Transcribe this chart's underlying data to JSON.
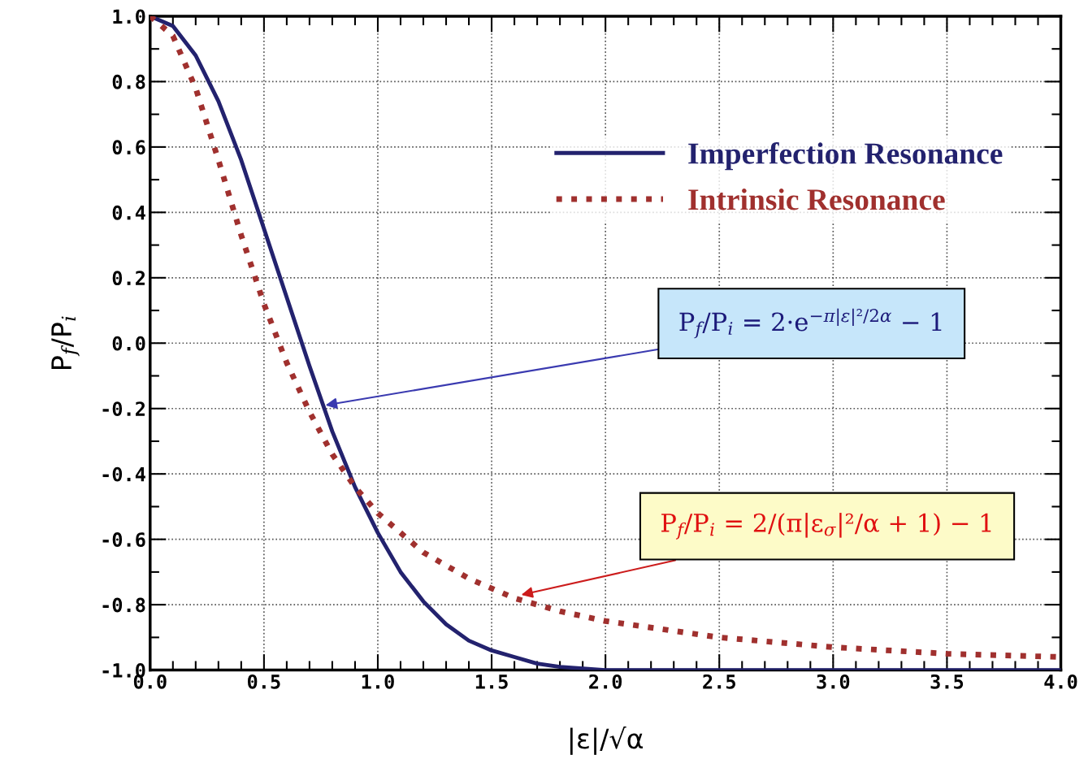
{
  "chart_data": {
    "type": "line",
    "xlabel": "|ε|/√α",
    "ylabel": "P$_{f}$/P$_{i}$",
    "x": [
      0,
      0.1,
      0.2,
      0.3,
      0.4,
      0.5,
      0.6,
      0.7,
      0.8,
      0.9,
      1.0,
      1.1,
      1.2,
      1.3,
      1.4,
      1.5,
      1.6,
      1.7,
      1.8,
      2.0,
      2.5,
      3.0,
      3.5,
      4.0
    ],
    "series": [
      {
        "name": "Imperfection Resonance",
        "color": "#23226e",
        "line_style": "solid",
        "values": [
          1.0,
          0.97,
          0.88,
          0.74,
          0.56,
          0.35,
          0.14,
          -0.07,
          -0.27,
          -0.44,
          -0.58,
          -0.7,
          -0.79,
          -0.86,
          -0.91,
          -0.94,
          -0.96,
          -0.98,
          -0.99,
          -1.0,
          -1.0,
          -1.0,
          -1.0,
          -1.0
        ]
      },
      {
        "name": "Intrinsic Resonance",
        "color": "#a0302e",
        "line_style": "dotted",
        "x": [
          0,
          0.1,
          0.2,
          0.3,
          0.4,
          0.5,
          0.6,
          0.7,
          0.8,
          0.9,
          1.0,
          1.2,
          1.4,
          1.6,
          1.8,
          2.0,
          2.5,
          3.0,
          3.5,
          4.0
        ],
        "values": [
          1.0,
          0.94,
          0.78,
          0.56,
          0.33,
          0.12,
          -0.06,
          -0.21,
          -0.34,
          -0.44,
          -0.52,
          -0.64,
          -0.72,
          -0.78,
          -0.82,
          -0.85,
          -0.9,
          -0.93,
          -0.95,
          -0.96
        ]
      }
    ],
    "xlim": [
      0,
      4
    ],
    "ylim": [
      -1,
      1
    ],
    "xticks": [
      {
        "value": 0.0,
        "label": "0.0"
      },
      {
        "value": 0.1,
        "label": null
      },
      {
        "value": 0.2,
        "label": null
      },
      {
        "value": 0.3,
        "label": null
      },
      {
        "value": 0.4,
        "label": null
      },
      0.5,
      {
        "value": 0.6,
        "label": null
      },
      {
        "value": 0.7,
        "label": null
      },
      {
        "value": 0.8,
        "label": null
      },
      {
        "value": 0.9,
        "label": null
      },
      {
        "value": 1.0,
        "label": "1.0"
      },
      {
        "value": 1.1,
        "label": null
      },
      {
        "value": 1.2,
        "label": null
      },
      {
        "value": 1.3,
        "label": null
      },
      {
        "value": 1.4,
        "label": null
      },
      1.5,
      {
        "value": 1.6,
        "label": null
      },
      {
        "value": 1.7,
        "label": null
      },
      {
        "value": 1.8,
        "label": null
      },
      {
        "value": 1.9,
        "label": null
      },
      {
        "value": 2.0,
        "label": "2.0"
      },
      {
        "value": 2.1,
        "label": null
      },
      {
        "value": 2.2,
        "label": null
      },
      {
        "value": 2.3,
        "label": null
      },
      {
        "value": 2.4,
        "label": null
      },
      2.5,
      {
        "value": 2.6,
        "label": null
      },
      {
        "value": 2.7,
        "label": null
      },
      {
        "value": 2.8,
        "label": null
      },
      {
        "value": 2.9,
        "label": null
      },
      {
        "value": 3.0,
        "label": "3.0"
      },
      {
        "value": 3.1,
        "label": null
      },
      {
        "value": 3.2,
        "label": null
      },
      {
        "value": 3.3,
        "label": null
      },
      {
        "value": 3.4,
        "label": null
      },
      3.5,
      {
        "value": 3.6,
        "label": null
      },
      {
        "value": 3.7,
        "label": null
      },
      {
        "value": 3.8,
        "label": null
      },
      {
        "value": 3.9,
        "label": null
      },
      {
        "value": 4.0,
        "label": "4.0"
      }
    ],
    "yticks": [
      {
        "value": -1.0,
        "label": "-1.0"
      },
      {
        "value": -0.9,
        "label": null
      },
      {
        "value": -0.8,
        "label": "-0.8"
      },
      {
        "value": -0.7,
        "label": null
      },
      {
        "value": -0.6,
        "label": "-0.6"
      },
      {
        "value": -0.5,
        "label": null
      },
      {
        "value": -0.4,
        "label": "-0.4"
      },
      {
        "value": -0.3,
        "label": null
      },
      {
        "value": -0.2,
        "label": "-0.2"
      },
      {
        "value": -0.1,
        "label": null
      },
      {
        "value": 0.0,
        "label": "0.0"
      },
      {
        "value": 0.1,
        "label": null
      },
      0.2,
      {
        "value": 0.3,
        "label": null
      },
      0.4,
      {
        "value": 0.5,
        "label": null
      },
      0.6,
      {
        "value": 0.7,
        "label": null
      },
      0.8,
      {
        "value": 0.9,
        "label": null
      },
      {
        "value": 1.0,
        "label": "1.0"
      }
    ],
    "grid": true,
    "legend": "top right",
    "annotations": [
      {
        "text": "P$_{f}$/P$_{i}$ = 2·e$^{−π|ε|²/2α}$ − 1",
        "x": 0.77,
        "y": -0.19
      },
      {
        "text": "P$_{f}$/P$_{i}$ = 2/(π|ε$_{σ}$|²/α + 1) − 1",
        "x": 1.63,
        "y": -0.77
      }
    ]
  }
}
